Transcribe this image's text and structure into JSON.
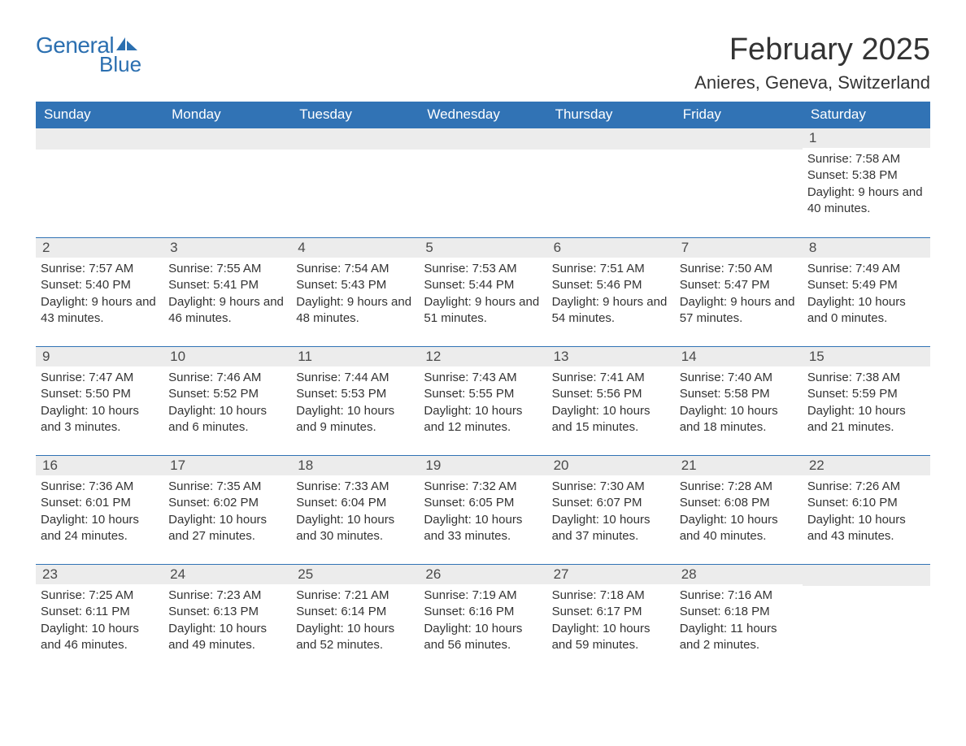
{
  "logo": {
    "text_general": "General",
    "text_blue": "Blue",
    "brand_color": "#2b6fb0"
  },
  "header": {
    "month_title": "February 2025",
    "location": "Anieres, Geneva, Switzerland"
  },
  "colors": {
    "header_bg": "#3173b5",
    "header_text": "#ffffff",
    "daynum_bg": "#ececec",
    "daynum_text": "#4a4a4a",
    "body_text": "#333333",
    "rule": "#3173b5",
    "page_bg": "#ffffff"
  },
  "typography": {
    "month_title_fontsize": 38,
    "location_fontsize": 22,
    "weekday_fontsize": 17,
    "daynum_fontsize": 17,
    "body_fontsize": 15
  },
  "weekdays": [
    "Sunday",
    "Monday",
    "Tuesday",
    "Wednesday",
    "Thursday",
    "Friday",
    "Saturday"
  ],
  "labels": {
    "sunrise": "Sunrise:",
    "sunset": "Sunset:",
    "daylight": "Daylight:"
  },
  "weeks": [
    [
      null,
      null,
      null,
      null,
      null,
      null,
      {
        "day": "1",
        "sunrise": "7:58 AM",
        "sunset": "5:38 PM",
        "daylight": "9 hours and 40 minutes."
      }
    ],
    [
      {
        "day": "2",
        "sunrise": "7:57 AM",
        "sunset": "5:40 PM",
        "daylight": "9 hours and 43 minutes."
      },
      {
        "day": "3",
        "sunrise": "7:55 AM",
        "sunset": "5:41 PM",
        "daylight": "9 hours and 46 minutes."
      },
      {
        "day": "4",
        "sunrise": "7:54 AM",
        "sunset": "5:43 PM",
        "daylight": "9 hours and 48 minutes."
      },
      {
        "day": "5",
        "sunrise": "7:53 AM",
        "sunset": "5:44 PM",
        "daylight": "9 hours and 51 minutes."
      },
      {
        "day": "6",
        "sunrise": "7:51 AM",
        "sunset": "5:46 PM",
        "daylight": "9 hours and 54 minutes."
      },
      {
        "day": "7",
        "sunrise": "7:50 AM",
        "sunset": "5:47 PM",
        "daylight": "9 hours and 57 minutes."
      },
      {
        "day": "8",
        "sunrise": "7:49 AM",
        "sunset": "5:49 PM",
        "daylight": "10 hours and 0 minutes."
      }
    ],
    [
      {
        "day": "9",
        "sunrise": "7:47 AM",
        "sunset": "5:50 PM",
        "daylight": "10 hours and 3 minutes."
      },
      {
        "day": "10",
        "sunrise": "7:46 AM",
        "sunset": "5:52 PM",
        "daylight": "10 hours and 6 minutes."
      },
      {
        "day": "11",
        "sunrise": "7:44 AM",
        "sunset": "5:53 PM",
        "daylight": "10 hours and 9 minutes."
      },
      {
        "day": "12",
        "sunrise": "7:43 AM",
        "sunset": "5:55 PM",
        "daylight": "10 hours and 12 minutes."
      },
      {
        "day": "13",
        "sunrise": "7:41 AM",
        "sunset": "5:56 PM",
        "daylight": "10 hours and 15 minutes."
      },
      {
        "day": "14",
        "sunrise": "7:40 AM",
        "sunset": "5:58 PM",
        "daylight": "10 hours and 18 minutes."
      },
      {
        "day": "15",
        "sunrise": "7:38 AM",
        "sunset": "5:59 PM",
        "daylight": "10 hours and 21 minutes."
      }
    ],
    [
      {
        "day": "16",
        "sunrise": "7:36 AM",
        "sunset": "6:01 PM",
        "daylight": "10 hours and 24 minutes."
      },
      {
        "day": "17",
        "sunrise": "7:35 AM",
        "sunset": "6:02 PM",
        "daylight": "10 hours and 27 minutes."
      },
      {
        "day": "18",
        "sunrise": "7:33 AM",
        "sunset": "6:04 PM",
        "daylight": "10 hours and 30 minutes."
      },
      {
        "day": "19",
        "sunrise": "7:32 AM",
        "sunset": "6:05 PM",
        "daylight": "10 hours and 33 minutes."
      },
      {
        "day": "20",
        "sunrise": "7:30 AM",
        "sunset": "6:07 PM",
        "daylight": "10 hours and 37 minutes."
      },
      {
        "day": "21",
        "sunrise": "7:28 AM",
        "sunset": "6:08 PM",
        "daylight": "10 hours and 40 minutes."
      },
      {
        "day": "22",
        "sunrise": "7:26 AM",
        "sunset": "6:10 PM",
        "daylight": "10 hours and 43 minutes."
      }
    ],
    [
      {
        "day": "23",
        "sunrise": "7:25 AM",
        "sunset": "6:11 PM",
        "daylight": "10 hours and 46 minutes."
      },
      {
        "day": "24",
        "sunrise": "7:23 AM",
        "sunset": "6:13 PM",
        "daylight": "10 hours and 49 minutes."
      },
      {
        "day": "25",
        "sunrise": "7:21 AM",
        "sunset": "6:14 PM",
        "daylight": "10 hours and 52 minutes."
      },
      {
        "day": "26",
        "sunrise": "7:19 AM",
        "sunset": "6:16 PM",
        "daylight": "10 hours and 56 minutes."
      },
      {
        "day": "27",
        "sunrise": "7:18 AM",
        "sunset": "6:17 PM",
        "daylight": "10 hours and 59 minutes."
      },
      {
        "day": "28",
        "sunrise": "7:16 AM",
        "sunset": "6:18 PM",
        "daylight": "11 hours and 2 minutes."
      },
      null
    ]
  ]
}
